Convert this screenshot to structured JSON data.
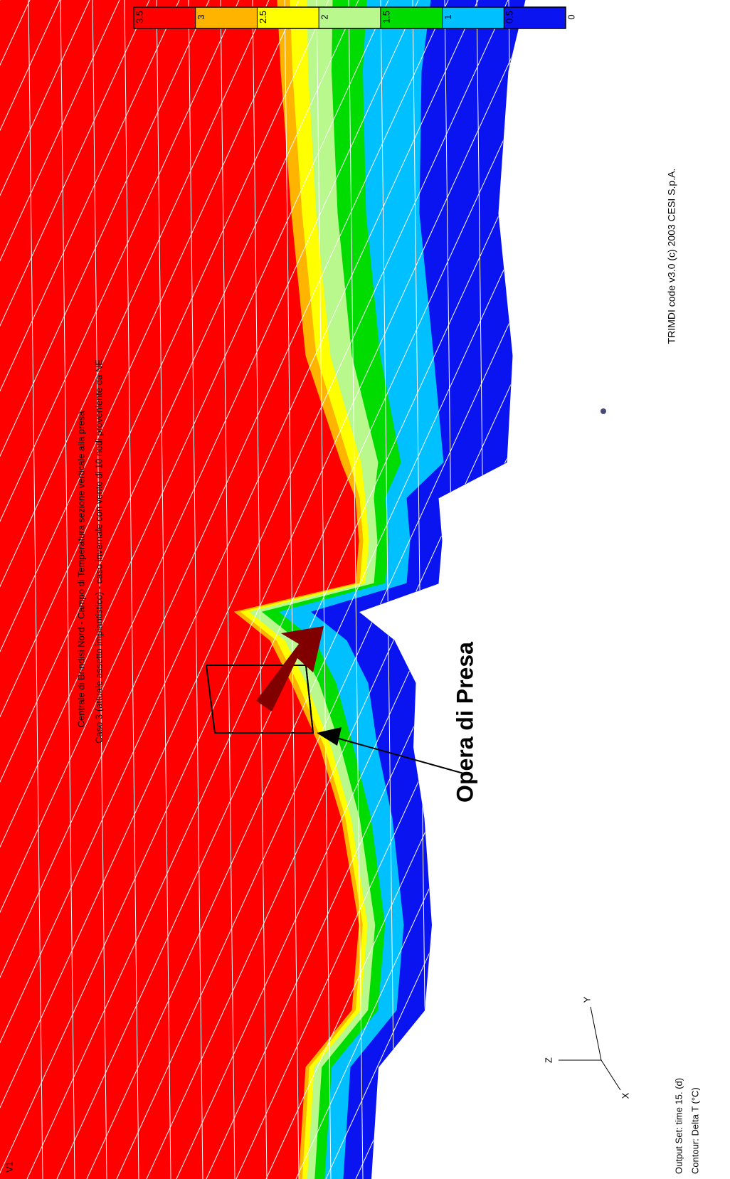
{
  "view_label": "V1",
  "title_lines": [
    "Centrale di Brindisi Nord - Campo di Temperatura sezione verticale alla presa",
    "Caso 3 (attuale assetto impiantistico) - caso invernale con vento di 10 nodi proveniente da NE"
  ],
  "annotation": "Opera di Presa",
  "credit": "TRIMDI code v3.0 (c) 2003 CESI S.p.A.",
  "output_set": "Output Set: time 15. (d)",
  "contour": "Contour: Delta T (°C)",
  "axes": [
    "Z",
    "Y",
    "X"
  ],
  "colorbar": {
    "ticks": [
      3.5,
      3,
      2.5,
      2,
      1.5,
      1,
      0.5,
      0
    ],
    "colors": [
      "#ff0000",
      "#ffb400",
      "#ffff00",
      "#b8f88c",
      "#00dc00",
      "#00c0ff",
      "#0a14f0"
    ]
  }
}
